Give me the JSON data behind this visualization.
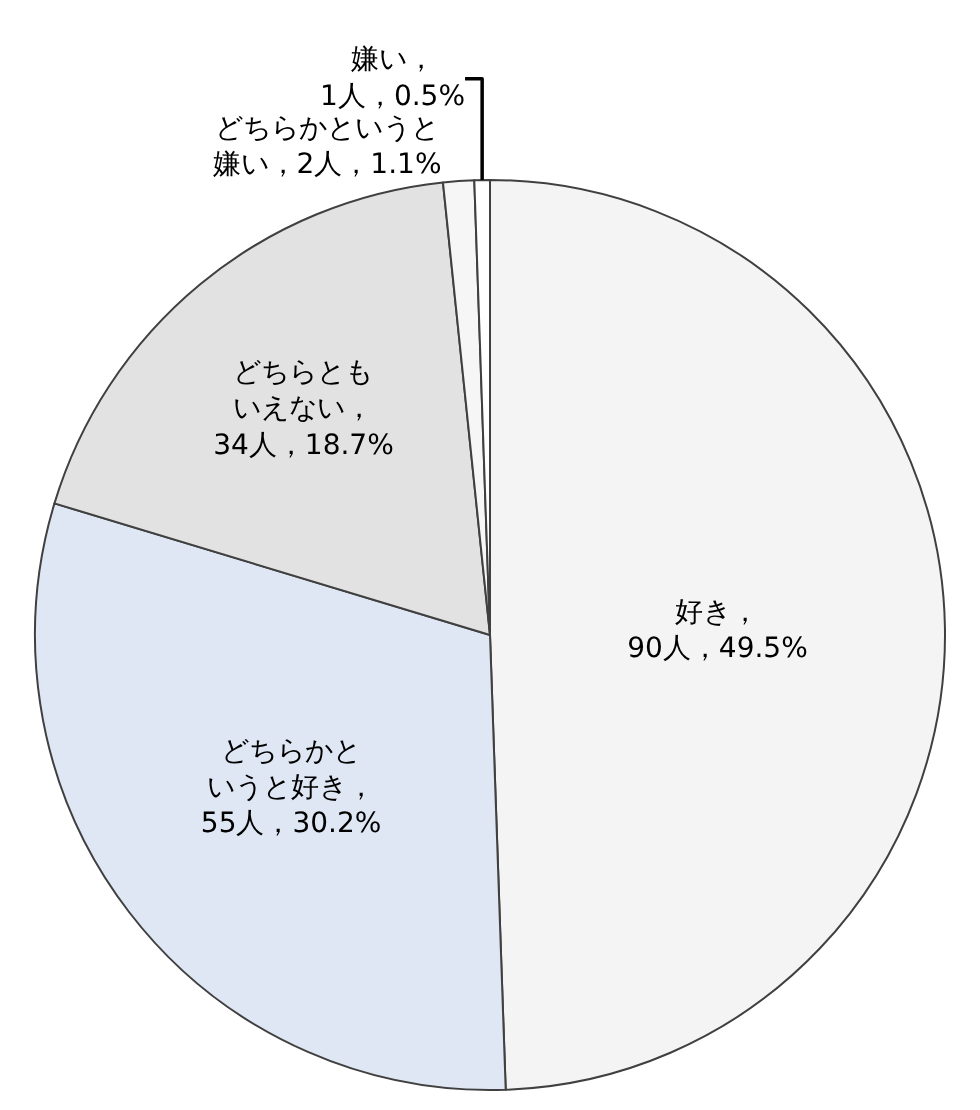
{
  "chart_data": {
    "type": "pie",
    "categories": [
      "好き",
      "どちらかというと好き",
      "どちらともいえない",
      "どちらかというと嫌い",
      "嫌い"
    ],
    "values": [
      90,
      55,
      34,
      2,
      1
    ],
    "colors": [
      "#f4f4f4",
      "#dee7f3",
      "#e2e2e2",
      "#f6f6f6",
      "#ffffff"
    ],
    "value_labels": [
      "，90人，49.5%",
      "，55人，30.2%",
      "，34人，18.7%",
      "，2人，1.1%",
      "，1人，0.5%"
    ],
    "legend": false
  }
}
